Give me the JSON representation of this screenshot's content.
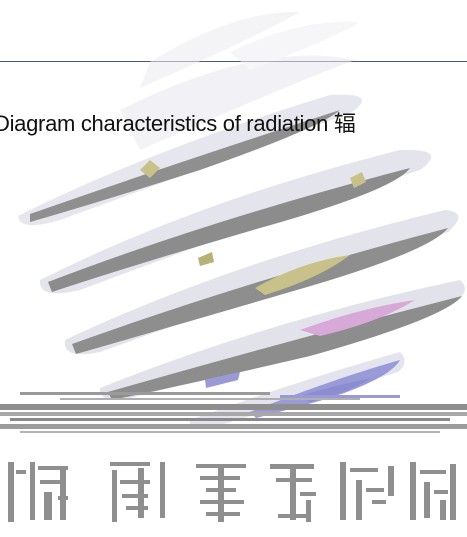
{
  "caption": {
    "text": "Diagram characteristics of radiation 辐"
  },
  "colors": {
    "rule": "#4a5a7a",
    "blade_gray": "#8f8f8f",
    "blade_light": "#e4e4ec",
    "accent_olive": "#c8c28a",
    "accent_purple": "#9a9ad8",
    "accent_pink": "#d8a8d8"
  }
}
